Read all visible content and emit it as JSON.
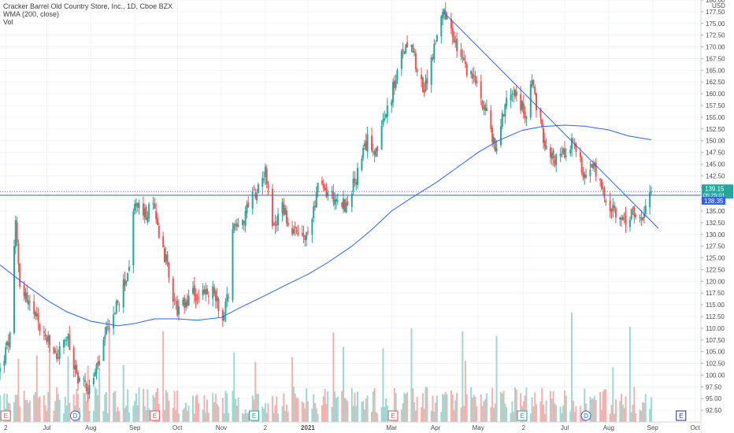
{
  "legend": {
    "title": "Cracker Barrel Old Country Store, Inc., 1D, Cboe BZX",
    "wma": "WMA (200, close)",
    "vol": "Vol"
  },
  "currency_label": "USD",
  "colors": {
    "up": "#26a69a",
    "down": "#ef5350",
    "vol_up": "#9fd8d2",
    "vol_down": "#f5b1ae",
    "wma": "#2962ff",
    "trendline": "#2962ff",
    "hline": "#2962ff",
    "grid": "#f0f3fa",
    "axis_text": "#4a4a4a",
    "tag_green": "#26a69a",
    "tag_blue": "#2962ff",
    "event_earnings": "#ef5350",
    "event_dividend": "#2962ff",
    "event_future": "#1e2f97"
  },
  "price_tags": {
    "last_price": "139.15",
    "countdown": "05:25:01",
    "level": "138.35"
  },
  "chart_data": {
    "type": "candlestick",
    "title": "Cracker Barrel Old Country Store, Inc., 1D, Cboe BZX",
    "ylabel": "USD",
    "ylim": [
      90,
      180
    ],
    "y_ticks": [
      "92.50",
      "95.00",
      "97.50",
      "100.00",
      "102.50",
      "105.00",
      "107.50",
      "110.00",
      "112.50",
      "115.00",
      "117.50",
      "120.00",
      "122.50",
      "125.00",
      "127.50",
      "130.00",
      "132.50",
      "135.00",
      "137.50",
      "140.00",
      "142.50",
      "145.00",
      "147.50",
      "150.00",
      "152.50",
      "155.00",
      "157.50",
      "160.00",
      "162.50",
      "165.00",
      "167.50",
      "170.00",
      "172.50",
      "175.00",
      "177.50",
      "180.00"
    ],
    "x_ticks": [
      {
        "label": "2",
        "x": "2020-06-02"
      },
      {
        "label": "Jul",
        "x": "2020-07-01"
      },
      {
        "label": "Aug",
        "x": "2020-08-01"
      },
      {
        "label": "Sep",
        "x": "2020-09-01"
      },
      {
        "label": "Oct",
        "x": "2020-10-01"
      },
      {
        "label": "Nov",
        "x": "2020-11-01"
      },
      {
        "label": "2",
        "x": "2020-12-02"
      },
      {
        "label": "2021",
        "x": "2021-01-01"
      },
      {
        "label": "Mar",
        "x": "2021-03-01"
      },
      {
        "label": "Apr",
        "x": "2021-04-01"
      },
      {
        "label": "May",
        "x": "2021-05-01"
      },
      {
        "label": "2",
        "x": "2021-06-02"
      },
      {
        "label": "Jul",
        "x": "2021-07-01"
      },
      {
        "label": "Aug",
        "x": "2021-08-01"
      },
      {
        "label": "Sep",
        "x": "2021-09-01"
      },
      {
        "label": "Oct",
        "x": "2021-10-01"
      }
    ],
    "x_range": [
      "2020-05-29",
      "2021-10-05"
    ],
    "price_anchors": [
      [
        "2020-05-29",
        101
      ],
      [
        "2020-06-05",
        108
      ],
      [
        "2020-06-09",
        132
      ],
      [
        "2020-06-12",
        120
      ],
      [
        "2020-06-16",
        117
      ],
      [
        "2020-06-26",
        110
      ],
      [
        "2020-07-08",
        104
      ],
      [
        "2020-07-15",
        108
      ],
      [
        "2020-07-22",
        100
      ],
      [
        "2020-07-31",
        97
      ],
      [
        "2020-08-07",
        103
      ],
      [
        "2020-08-14",
        111
      ],
      [
        "2020-08-21",
        116
      ],
      [
        "2020-08-28",
        123
      ],
      [
        "2020-09-01",
        137
      ],
      [
        "2020-09-08",
        134
      ],
      [
        "2020-09-14",
        136
      ],
      [
        "2020-09-21",
        127
      ],
      [
        "2020-10-01",
        113
      ],
      [
        "2020-10-12",
        117
      ],
      [
        "2020-10-22",
        117
      ],
      [
        "2020-10-27",
        118
      ],
      [
        "2020-11-02",
        112
      ],
      [
        "2020-11-06",
        118
      ],
      [
        "2020-11-09",
        132
      ],
      [
        "2020-11-16",
        133
      ],
      [
        "2020-11-23",
        138
      ],
      [
        "2020-12-02",
        144
      ],
      [
        "2020-12-07",
        131
      ],
      [
        "2020-12-14",
        136
      ],
      [
        "2020-12-21",
        130
      ],
      [
        "2020-12-31",
        129
      ],
      [
        "2021-01-08",
        140
      ],
      [
        "2021-01-20",
        138
      ],
      [
        "2021-01-28",
        136
      ],
      [
        "2021-02-05",
        143
      ],
      [
        "2021-02-12",
        150
      ],
      [
        "2021-02-19",
        148
      ],
      [
        "2021-02-26",
        157
      ],
      [
        "2021-03-03",
        162
      ],
      [
        "2021-03-10",
        170
      ],
      [
        "2021-03-15",
        172
      ],
      [
        "2021-03-19",
        165
      ],
      [
        "2021-03-24",
        160
      ],
      [
        "2021-03-31",
        170
      ],
      [
        "2021-04-07",
        177
      ],
      [
        "2021-04-12",
        173
      ],
      [
        "2021-04-19",
        167
      ],
      [
        "2021-04-30",
        162
      ],
      [
        "2021-05-07",
        156
      ],
      [
        "2021-05-13",
        148
      ],
      [
        "2021-05-20",
        158
      ],
      [
        "2021-05-27",
        162
      ],
      [
        "2021-06-03",
        155
      ],
      [
        "2021-06-08",
        162
      ],
      [
        "2021-06-15",
        152
      ],
      [
        "2021-06-22",
        146
      ],
      [
        "2021-06-29",
        147
      ],
      [
        "2021-07-06",
        150
      ],
      [
        "2021-07-15",
        143
      ],
      [
        "2021-07-22",
        144
      ],
      [
        "2021-07-30",
        137
      ],
      [
        "2021-08-06",
        134
      ],
      [
        "2021-08-13",
        133
      ],
      [
        "2021-08-20",
        135
      ],
      [
        "2021-08-25",
        132
      ],
      [
        "2021-08-27",
        136
      ],
      [
        "2021-08-31",
        139.15
      ]
    ],
    "wma_anchors": [
      [
        "2020-05-29",
        123.5
      ],
      [
        "2020-06-15",
        119.5
      ],
      [
        "2020-07-01",
        116
      ],
      [
        "2020-07-15",
        113.5
      ],
      [
        "2020-08-01",
        111.5
      ],
      [
        "2020-08-20",
        110.5
      ],
      [
        "2020-09-01",
        111
      ],
      [
        "2020-09-15",
        112
      ],
      [
        "2020-10-01",
        112
      ],
      [
        "2020-10-15",
        111.7
      ],
      [
        "2020-11-01",
        112.3
      ],
      [
        "2020-11-15",
        114.5
      ],
      [
        "2020-12-02",
        117
      ],
      [
        "2020-12-15",
        119
      ],
      [
        "2021-01-01",
        121.5
      ],
      [
        "2021-01-15",
        124
      ],
      [
        "2021-02-01",
        127.5
      ],
      [
        "2021-02-15",
        131
      ],
      [
        "2021-03-01",
        135
      ],
      [
        "2021-03-15",
        137.8
      ],
      [
        "2021-04-01",
        141
      ],
      [
        "2021-04-15",
        144
      ],
      [
        "2021-05-01",
        147.5
      ],
      [
        "2021-05-15",
        150
      ],
      [
        "2021-06-01",
        152.2
      ],
      [
        "2021-06-15",
        153
      ],
      [
        "2021-07-01",
        153.3
      ],
      [
        "2021-07-15",
        153.1
      ],
      [
        "2021-08-01",
        152.3
      ],
      [
        "2021-08-15",
        151
      ],
      [
        "2021-08-31",
        150.2
      ]
    ],
    "trendline": {
      "start": [
        "2021-04-07",
        177.3
      ],
      "end": [
        "2021-09-05",
        131.3
      ]
    },
    "horizontal_line": 138.35,
    "last_price": 139.15,
    "events": [
      {
        "label": "E",
        "x": "2020-06-02",
        "kind": "earnings"
      },
      {
        "label": "D",
        "x": "2020-07-21",
        "kind": "dividend"
      },
      {
        "label": "E",
        "x": "2020-09-15",
        "kind": "earnings"
      },
      {
        "label": "E",
        "x": "2020-11-24",
        "kind": "earnings-green"
      },
      {
        "label": "E",
        "x": "2021-03-02",
        "kind": "earnings"
      },
      {
        "label": "E",
        "x": "2021-06-01",
        "kind": "earnings-green"
      },
      {
        "label": "D",
        "x": "2021-07-16",
        "kind": "dividend"
      },
      {
        "label": "E",
        "x": "2021-09-21",
        "kind": "future"
      }
    ]
  }
}
